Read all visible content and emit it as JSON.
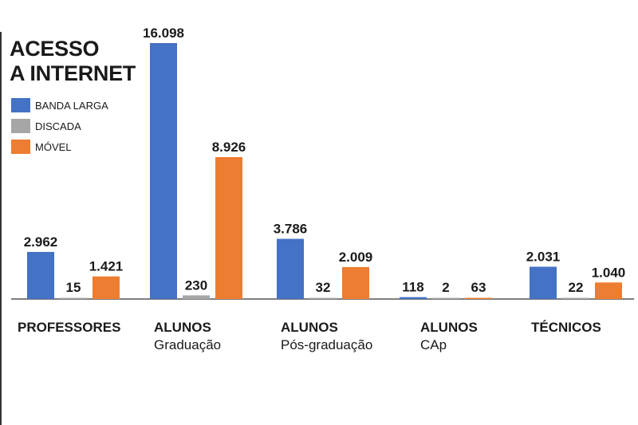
{
  "title_lines": [
    "ACESSO",
    "A INTERNET"
  ],
  "legend": [
    {
      "label": "BANDA LARGA",
      "color": "#4472c4"
    },
    {
      "label": "DISCADA",
      "color": "#a6a6a6"
    },
    {
      "label": "MÓVEL",
      "color": "#ed7d31"
    }
  ],
  "categories": [
    {
      "main": "PROFESSORES",
      "sub": ""
    },
    {
      "main": "ALUNOS",
      "sub": "Graduação"
    },
    {
      "main": "ALUNOS",
      "sub": "Pós-graduação"
    },
    {
      "main": "ALUNOS",
      "sub": "CAp"
    },
    {
      "main": "TÉCNICOS",
      "sub": ""
    }
  ],
  "chart_data": {
    "type": "bar",
    "title": "ACESSO A INTERNET",
    "categories": [
      "PROFESSORES",
      "ALUNOS Graduação",
      "ALUNOS Pós-graduação",
      "ALUNOS CAp",
      "TÉCNICOS"
    ],
    "series": [
      {
        "name": "BANDA LARGA",
        "color": "#4472c4",
        "values": [
          2962,
          16098,
          3786,
          118,
          2031
        ],
        "labels": [
          "2.962",
          "16.098",
          "3.786",
          "118",
          "2.031"
        ]
      },
      {
        "name": "DISCADA",
        "color": "#a6a6a6",
        "values": [
          15,
          230,
          32,
          2,
          22
        ],
        "labels": [
          "15",
          "230",
          "32",
          "2",
          "22"
        ]
      },
      {
        "name": "MÓVEL",
        "color": "#ed7d31",
        "values": [
          1421,
          8926,
          2009,
          63,
          1040
        ],
        "labels": [
          "1.421",
          "8.926",
          "2.009",
          "63",
          "1.040"
        ]
      }
    ],
    "legend_position": "top-left",
    "grid": false
  }
}
